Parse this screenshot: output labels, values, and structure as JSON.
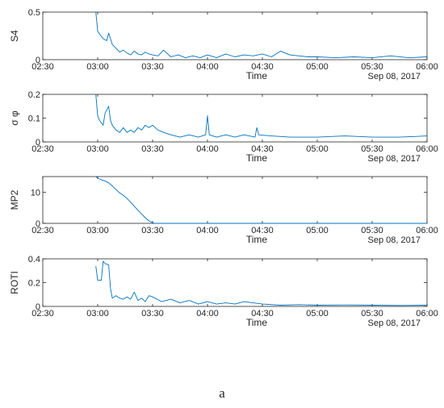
{
  "caption": "a",
  "chart_data": [
    {
      "type": "line",
      "ylabel": "S4",
      "xlabel": "Time",
      "date_label": "Sep 08, 2017",
      "color": "#0072BD",
      "xlim": [
        "02:30",
        "06:00"
      ],
      "x_ticks": [
        "02:30",
        "03:00",
        "03:30",
        "04:00",
        "04:30",
        "05:00",
        "05:30",
        "06:00"
      ],
      "ylim": [
        0,
        0.5
      ],
      "y_ticks": [
        "0",
        "0.5"
      ],
      "series": [
        {
          "x": [
            "02:59",
            "03:00",
            "03:01",
            "03:03",
            "03:05",
            "03:06",
            "03:07",
            "03:08",
            "03:10",
            "03:12",
            "03:14",
            "03:16",
            "03:18",
            "03:20",
            "03:22",
            "03:24",
            "03:26",
            "03:28",
            "03:30",
            "03:33",
            "03:36",
            "03:40",
            "03:44",
            "03:48",
            "03:52",
            "03:56",
            "04:00",
            "04:05",
            "04:10",
            "04:15",
            "04:20",
            "04:25",
            "04:30",
            "04:35",
            "04:40",
            "04:45",
            "04:50",
            "04:55",
            "05:00",
            "05:10",
            "05:20",
            "05:30",
            "05:40",
            "05:50",
            "06:00"
          ],
          "y": [
            0.5,
            0.3,
            0.27,
            0.22,
            0.2,
            0.28,
            0.22,
            0.16,
            0.12,
            0.08,
            0.1,
            0.07,
            0.05,
            0.09,
            0.06,
            0.05,
            0.08,
            0.06,
            0.05,
            0.04,
            0.1,
            0.03,
            0.05,
            0.02,
            0.04,
            0.02,
            0.05,
            0.02,
            0.06,
            0.03,
            0.05,
            0.04,
            0.06,
            0.03,
            0.09,
            0.05,
            0.04,
            0.03,
            0.03,
            0.02,
            0.03,
            0.02,
            0.04,
            0.02,
            0.03
          ]
        }
      ]
    },
    {
      "type": "line",
      "ylabel": "σ φ",
      "xlabel": "Time",
      "date_label": "Sep 08, 2017",
      "color": "#0072BD",
      "xlim": [
        "02:30",
        "06:00"
      ],
      "x_ticks": [
        "02:30",
        "03:00",
        "03:30",
        "04:00",
        "04:30",
        "05:00",
        "05:30",
        "06:00"
      ],
      "ylim": [
        0,
        0.2
      ],
      "y_ticks": [
        "0",
        "0.1",
        "0.2"
      ],
      "series": [
        {
          "x": [
            "02:59",
            "03:00",
            "03:01",
            "03:03",
            "03:04",
            "03:06",
            "03:07",
            "03:08",
            "03:10",
            "03:12",
            "03:14",
            "03:16",
            "03:18",
            "03:20",
            "03:22",
            "03:24",
            "03:26",
            "03:28",
            "03:30",
            "03:33",
            "03:36",
            "03:40",
            "03:45",
            "03:50",
            "03:55",
            "03:59",
            "04:00",
            "04:01",
            "04:05",
            "04:10",
            "04:15",
            "04:20",
            "04:26",
            "04:27",
            "04:28",
            "04:35",
            "04:45",
            "05:00",
            "05:15",
            "05:30",
            "05:45",
            "06:00"
          ],
          "y": [
            0.2,
            0.11,
            0.09,
            0.07,
            0.12,
            0.15,
            0.09,
            0.07,
            0.05,
            0.04,
            0.06,
            0.04,
            0.05,
            0.04,
            0.06,
            0.05,
            0.07,
            0.06,
            0.07,
            0.05,
            0.04,
            0.03,
            0.02,
            0.03,
            0.02,
            0.03,
            0.11,
            0.03,
            0.02,
            0.03,
            0.02,
            0.03,
            0.02,
            0.06,
            0.03,
            0.025,
            0.02,
            0.02,
            0.025,
            0.02,
            0.02,
            0.025
          ]
        }
      ]
    },
    {
      "type": "line",
      "ylabel": "MP2",
      "xlabel": "Time",
      "date_label": "Sep 08, 2017",
      "color": "#0072BD",
      "xlim": [
        "02:30",
        "06:00"
      ],
      "x_ticks": [
        "02:30",
        "03:00",
        "03:30",
        "04:00",
        "04:30",
        "05:00",
        "05:30",
        "06:00"
      ],
      "ylim": [
        0,
        15
      ],
      "y_ticks": [
        "0",
        "10"
      ],
      "series": [
        {
          "x": [
            "02:59",
            "03:00",
            "03:02",
            "03:04",
            "03:06",
            "03:08",
            "03:10",
            "03:12",
            "03:14",
            "03:16",
            "03:18",
            "03:20",
            "03:22",
            "03:24",
            "03:26",
            "03:28",
            "03:30",
            "03:31",
            "03:40",
            "04:00",
            "04:30",
            "05:00",
            "05:30",
            "06:00"
          ],
          "y": [
            15,
            14.5,
            14,
            13.6,
            13,
            12,
            10.8,
            9.8,
            9,
            8,
            6.8,
            5.5,
            4.2,
            3,
            1.8,
            0.8,
            0.2,
            0,
            0,
            0,
            0,
            0,
            0,
            0
          ]
        }
      ]
    },
    {
      "type": "line",
      "ylabel": "ROTI",
      "xlabel": "Time",
      "date_label": "Sep 08, 2017",
      "color": "#0072BD",
      "xlim": [
        "02:30",
        "06:00"
      ],
      "x_ticks": [
        "02:30",
        "03:00",
        "03:30",
        "04:00",
        "04:30",
        "05:00",
        "05:30",
        "06:00"
      ],
      "ylim": [
        0,
        0.4
      ],
      "y_ticks": [
        "0",
        "0.2",
        "0.4"
      ],
      "series": [
        {
          "x": [
            "02:59",
            "03:00",
            "03:01",
            "03:02",
            "03:03",
            "03:04",
            "03:06",
            "03:07",
            "03:08",
            "03:10",
            "03:12",
            "03:14",
            "03:16",
            "03:18",
            "03:20",
            "03:22",
            "03:24",
            "03:26",
            "03:28",
            "03:30",
            "03:35",
            "03:40",
            "03:45",
            "03:50",
            "03:55",
            "04:00",
            "04:05",
            "04:10",
            "04:15",
            "04:20",
            "04:30",
            "04:40",
            "04:50",
            "05:00",
            "05:15",
            "05:30",
            "05:45",
            "06:00"
          ],
          "y": [
            0.34,
            0.22,
            0.22,
            0.22,
            0.38,
            0.36,
            0.35,
            0.15,
            0.07,
            0.09,
            0.07,
            0.06,
            0.08,
            0.06,
            0.12,
            0.05,
            0.07,
            0.04,
            0.09,
            0.08,
            0.04,
            0.06,
            0.03,
            0.05,
            0.02,
            0.04,
            0.02,
            0.03,
            0.02,
            0.04,
            0.02,
            0.01,
            0.015,
            0.01,
            0.012,
            0.01,
            0.008,
            0.01
          ]
        }
      ]
    }
  ]
}
